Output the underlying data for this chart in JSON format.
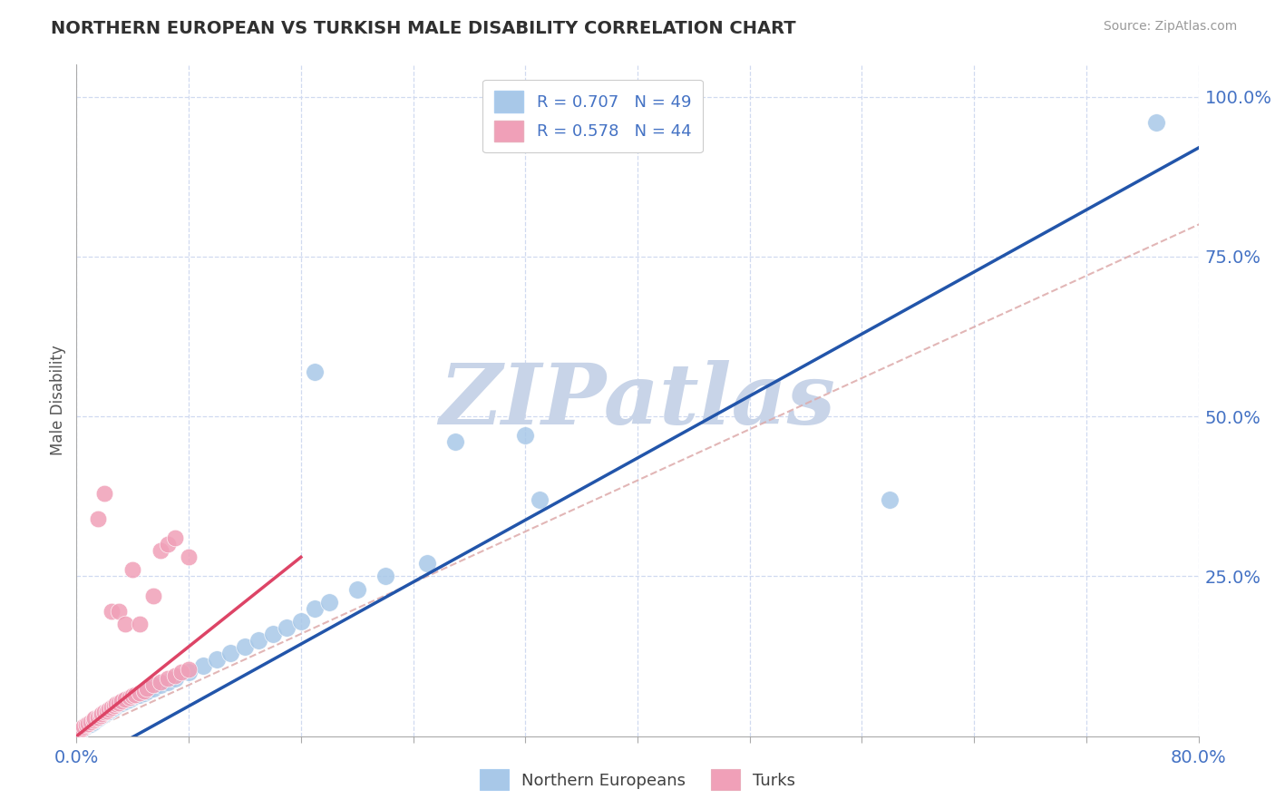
{
  "title": "NORTHERN EUROPEAN VS TURKISH MALE DISABILITY CORRELATION CHART",
  "source": "Source: ZipAtlas.com",
  "ylabel": "Male Disability",
  "xlim": [
    0.0,
    0.8
  ],
  "ylim": [
    0.0,
    1.05
  ],
  "x_ticks": [
    0.0,
    0.08,
    0.16,
    0.24,
    0.32,
    0.4,
    0.48,
    0.56,
    0.64,
    0.72,
    0.8
  ],
  "y_ticks_right": [
    0.0,
    0.25,
    0.5,
    0.75,
    1.0
  ],
  "y_tick_labels_right": [
    "",
    "25.0%",
    "50.0%",
    "75.0%",
    "100.0%"
  ],
  "R_blue": 0.707,
  "N_blue": 49,
  "R_pink": 0.578,
  "N_pink": 44,
  "color_blue": "#A8C8E8",
  "color_pink": "#F0A0B8",
  "line_blue": "#2255AA",
  "line_pink": "#DD4466",
  "line_diag_color": "#DDAAAA",
  "watermark": "ZIPatlas",
  "watermark_color": "#C8D4E8",
  "blue_points": [
    [
      0.003,
      0.01
    ],
    [
      0.005,
      0.012
    ],
    [
      0.006,
      0.015
    ],
    [
      0.008,
      0.018
    ],
    [
      0.01,
      0.02
    ],
    [
      0.012,
      0.022
    ],
    [
      0.013,
      0.025
    ],
    [
      0.015,
      0.028
    ],
    [
      0.016,
      0.03
    ],
    [
      0.018,
      0.032
    ],
    [
      0.02,
      0.035
    ],
    [
      0.022,
      0.038
    ],
    [
      0.023,
      0.04
    ],
    [
      0.025,
      0.042
    ],
    [
      0.027,
      0.045
    ],
    [
      0.028,
      0.048
    ],
    [
      0.03,
      0.05
    ],
    [
      0.032,
      0.052
    ],
    [
      0.035,
      0.055
    ],
    [
      0.038,
      0.058
    ],
    [
      0.04,
      0.06
    ],
    [
      0.042,
      0.063
    ],
    [
      0.045,
      0.065
    ],
    [
      0.048,
      0.068
    ],
    [
      0.05,
      0.07
    ],
    [
      0.055,
      0.075
    ],
    [
      0.06,
      0.08
    ],
    [
      0.065,
      0.085
    ],
    [
      0.07,
      0.09
    ],
    [
      0.08,
      0.1
    ],
    [
      0.09,
      0.11
    ],
    [
      0.1,
      0.12
    ],
    [
      0.11,
      0.13
    ],
    [
      0.12,
      0.14
    ],
    [
      0.13,
      0.15
    ],
    [
      0.14,
      0.16
    ],
    [
      0.15,
      0.17
    ],
    [
      0.16,
      0.18
    ],
    [
      0.17,
      0.2
    ],
    [
      0.18,
      0.21
    ],
    [
      0.2,
      0.23
    ],
    [
      0.22,
      0.25
    ],
    [
      0.25,
      0.27
    ],
    [
      0.17,
      0.57
    ],
    [
      0.27,
      0.46
    ],
    [
      0.33,
      0.37
    ],
    [
      0.58,
      0.37
    ],
    [
      0.77,
      0.96
    ],
    [
      0.32,
      0.47
    ]
  ],
  "pink_points": [
    [
      0.002,
      0.008
    ],
    [
      0.004,
      0.012
    ],
    [
      0.005,
      0.015
    ],
    [
      0.007,
      0.018
    ],
    [
      0.008,
      0.02
    ],
    [
      0.01,
      0.022
    ],
    [
      0.012,
      0.025
    ],
    [
      0.013,
      0.028
    ],
    [
      0.015,
      0.03
    ],
    [
      0.017,
      0.032
    ],
    [
      0.018,
      0.035
    ],
    [
      0.02,
      0.038
    ],
    [
      0.022,
      0.04
    ],
    [
      0.023,
      0.042
    ],
    [
      0.025,
      0.045
    ],
    [
      0.027,
      0.048
    ],
    [
      0.028,
      0.05
    ],
    [
      0.03,
      0.052
    ],
    [
      0.032,
      0.055
    ],
    [
      0.035,
      0.058
    ],
    [
      0.038,
      0.06
    ],
    [
      0.04,
      0.063
    ],
    [
      0.042,
      0.065
    ],
    [
      0.045,
      0.068
    ],
    [
      0.048,
      0.07
    ],
    [
      0.05,
      0.075
    ],
    [
      0.055,
      0.08
    ],
    [
      0.06,
      0.085
    ],
    [
      0.065,
      0.09
    ],
    [
      0.07,
      0.095
    ],
    [
      0.075,
      0.1
    ],
    [
      0.08,
      0.105
    ],
    [
      0.055,
      0.22
    ],
    [
      0.02,
      0.38
    ],
    [
      0.06,
      0.29
    ],
    [
      0.065,
      0.3
    ],
    [
      0.07,
      0.31
    ],
    [
      0.08,
      0.28
    ],
    [
      0.04,
      0.26
    ],
    [
      0.015,
      0.34
    ],
    [
      0.025,
      0.195
    ],
    [
      0.03,
      0.195
    ],
    [
      0.035,
      0.175
    ],
    [
      0.045,
      0.175
    ]
  ],
  "background_color": "#FFFFFF",
  "grid_color": "#D0DAF0",
  "title_color": "#303030",
  "axis_color": "#4472C4",
  "source_color": "#999999"
}
